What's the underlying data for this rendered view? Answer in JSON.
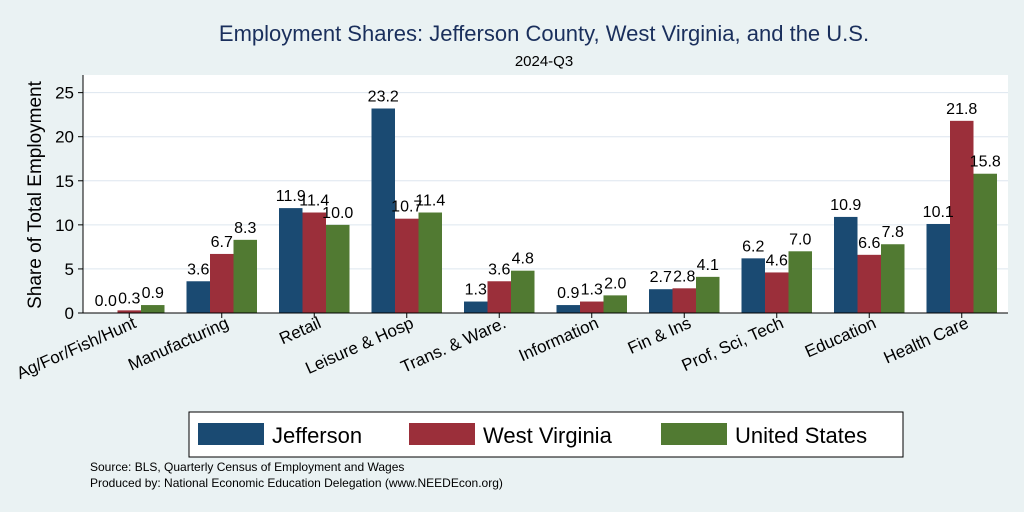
{
  "colors": {
    "background": "#eaf2f3",
    "plot_background": "#ffffff",
    "title": "#1a2f5c",
    "gridline": "#dde6ef",
    "axis": "#000000"
  },
  "chart_data": {
    "type": "bar",
    "title": "Employment Shares: Jefferson County, West Virginia, and the U.S.",
    "subtitle": "2024-Q3",
    "xlabel": "",
    "ylabel": "Share of Total Employment",
    "ylim": [
      0,
      27
    ],
    "yticks": [
      0,
      5,
      10,
      15,
      20,
      25
    ],
    "grid": true,
    "legend_position": "bottom",
    "categories": [
      "Ag/For/Fish/Hunt",
      "Manufacturing",
      "Retail",
      "Leisure & Hosp",
      "Trans. & Ware.",
      "Information",
      "Fin & Ins",
      "Prof, Sci, Tech",
      "Education",
      "Health Care"
    ],
    "series": [
      {
        "name": "Jefferson",
        "color": "#1a4a72",
        "values": [
          0.0,
          3.6,
          11.9,
          23.2,
          1.3,
          0.9,
          2.7,
          6.2,
          10.9,
          10.1
        ]
      },
      {
        "name": "West Virginia",
        "color": "#9b2f3a",
        "values": [
          0.3,
          6.7,
          11.4,
          10.7,
          3.6,
          1.3,
          2.8,
          4.6,
          6.6,
          21.8
        ]
      },
      {
        "name": "United States",
        "color": "#517a32",
        "values": [
          0.9,
          8.3,
          10.0,
          11.4,
          4.8,
          2.0,
          4.1,
          7.0,
          7.8,
          15.8
        ]
      }
    ],
    "notes": [
      "Source: BLS, Quarterly Census of Employment and Wages",
      "Produced by: National Economic Education Delegation (www.NEEDEcon.org)"
    ]
  }
}
